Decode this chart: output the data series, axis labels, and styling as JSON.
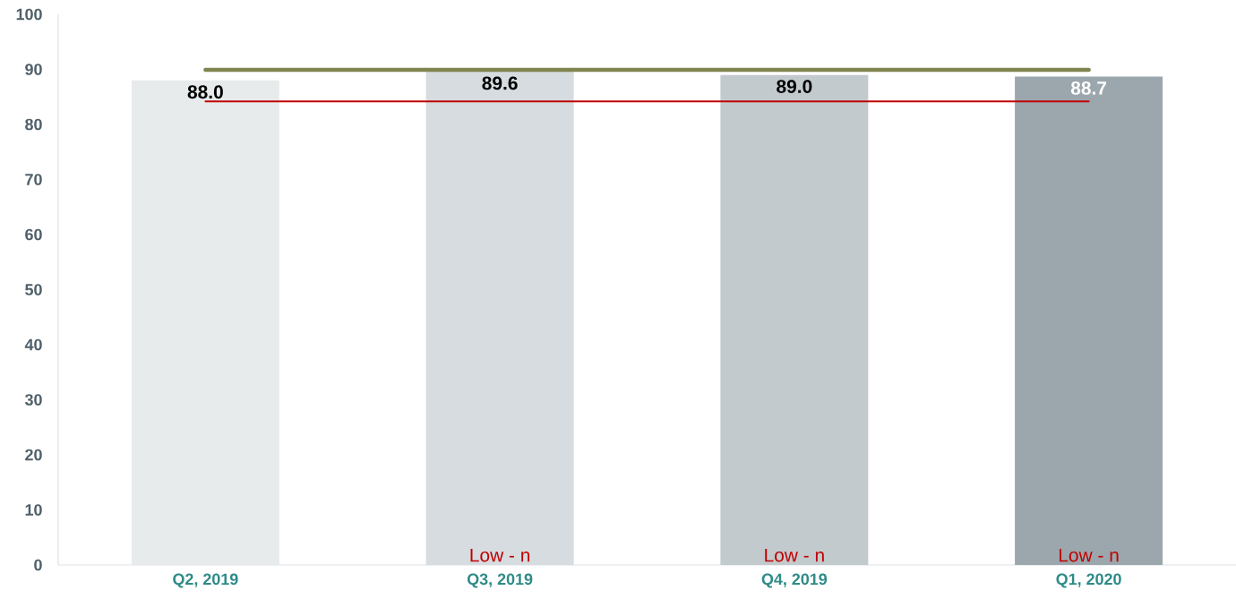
{
  "chart_data": {
    "type": "bar",
    "categories": [
      "Q2, 2019",
      "Q3, 2019",
      "Q4, 2019",
      "Q1, 2020"
    ],
    "series": [
      {
        "colors": [
          "#e8ebec",
          "#d6dcdf",
          "#c3cacd",
          "#9ba7ad"
        ],
        "values": [
          88.0,
          89.6,
          89.0,
          88.7
        ],
        "value_labels": [
          "88.0",
          "89.6",
          "89.0",
          "88.7"
        ]
      },
      {
        "type": "line",
        "color": "#7f8450",
        "values": [
          89.9,
          89.9,
          89.9,
          89.9
        ]
      },
      {
        "type": "line",
        "color": "#c00000",
        "values": [
          84.2,
          84.2,
          84.2,
          84.2
        ]
      }
    ],
    "ylim": [
      0,
      100
    ],
    "yticks": [
      0,
      10,
      20,
      30,
      40,
      50,
      60,
      70,
      80,
      90,
      100
    ],
    "annotations": [
      "Low - n",
      "Low - n",
      "Low - n"
    ]
  }
}
